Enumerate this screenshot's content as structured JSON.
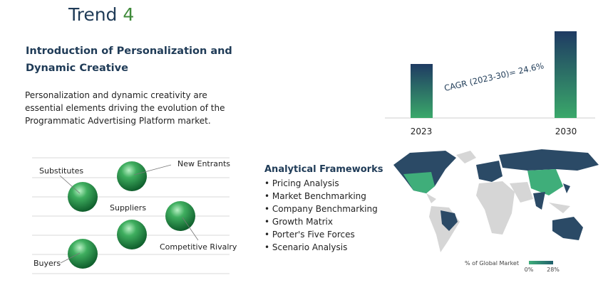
{
  "header": {
    "title_word": "Trend",
    "title_number": "4"
  },
  "intro": {
    "heading": "Introduction of Personalization and Dynamic Creative",
    "body": "Personalization and dynamic creativity are essential elements driving the evolution of the Programmatic Advertising Platform market."
  },
  "forces": {
    "labels": [
      "Substitutes",
      "New Entrants",
      "Suppliers",
      "Competitive Rivalry",
      "Buyers"
    ]
  },
  "frameworks": {
    "title": "Analytical Frameworks",
    "items": [
      "Pricing Analysis",
      "Market Benchmarking",
      "Company Benchmarking",
      "Growth Matrix",
      "Porter's Five Forces",
      "Scenario Analysis"
    ]
  },
  "growth": {
    "annotation": "CAGR (2023-30)= 24.6%",
    "years": [
      "2023",
      "2030"
    ]
  },
  "map_legend": {
    "title": "% of Global Market",
    "min": "0%",
    "max": "28%"
  }
}
